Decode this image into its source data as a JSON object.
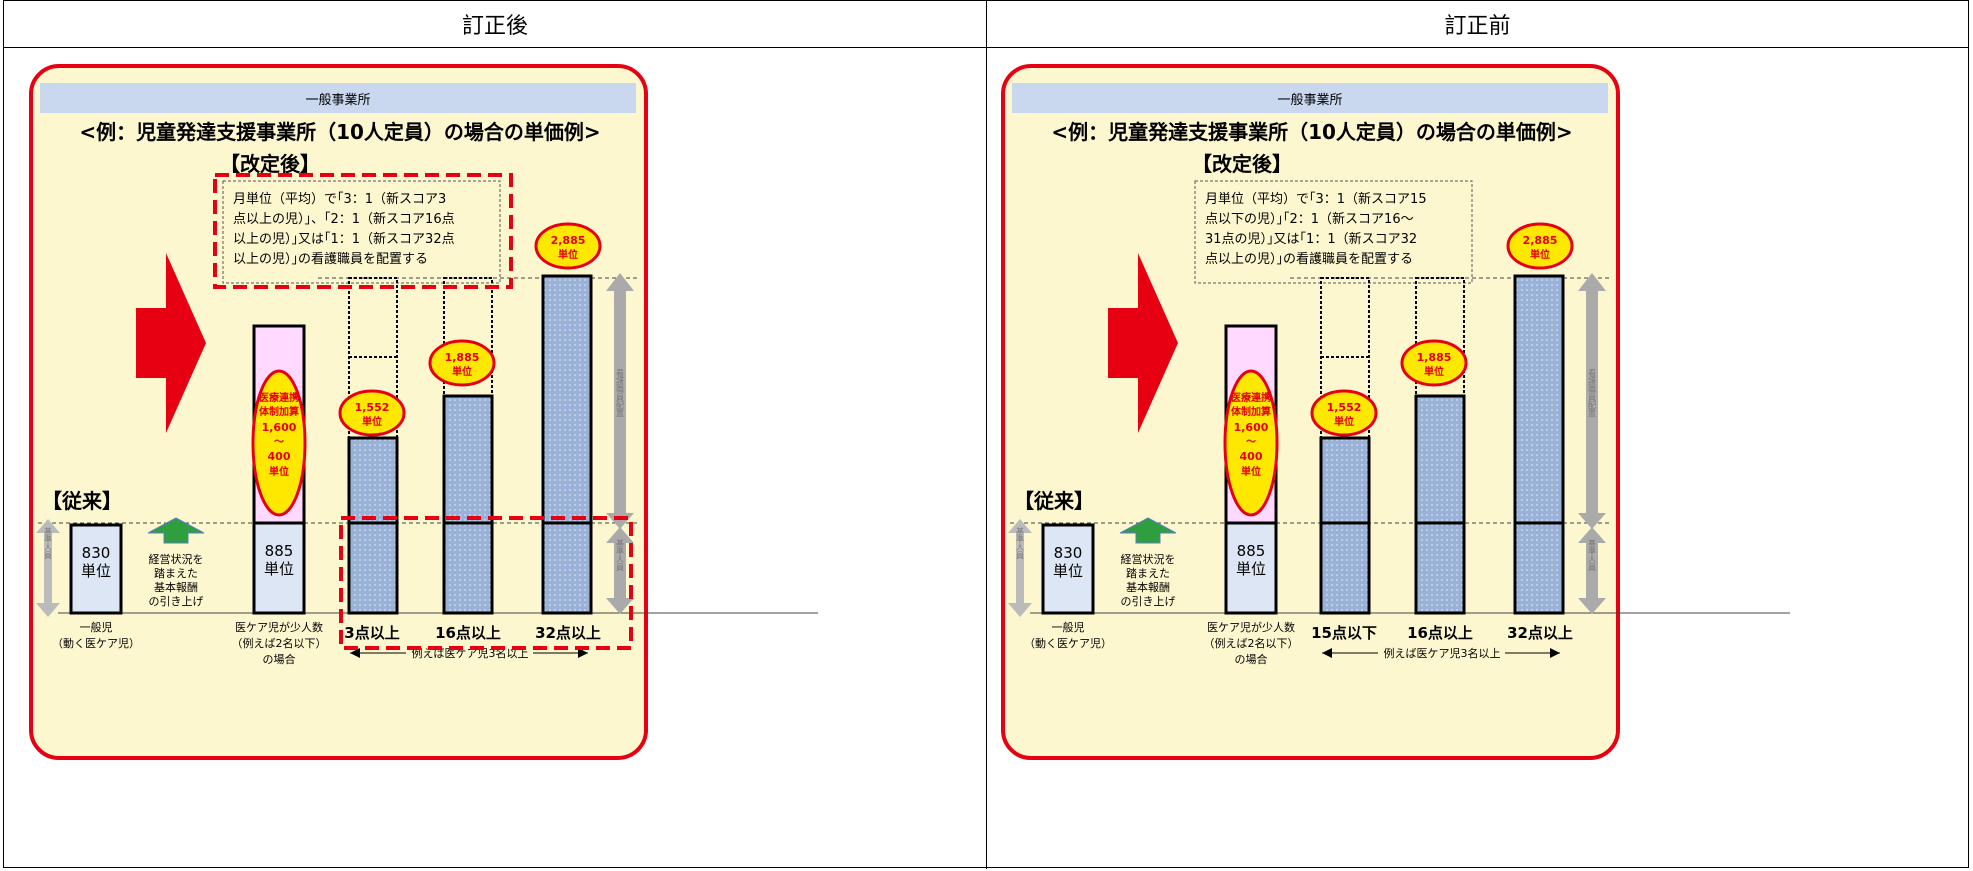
{
  "headers": {
    "left": "訂正後",
    "right": "訂正前"
  },
  "shared": {
    "banner": "一般事業所",
    "title": "<例：児童発達支援事業所（10人定員）の場合の単価例>",
    "after_label": "【改定後】",
    "before_label": "【従来】",
    "base_830": [
      "830",
      "単位"
    ],
    "base_885": [
      "885",
      "単位"
    ],
    "raise_note": [
      "経営状況を",
      "踏まえた",
      "基本報酬",
      "の引き上げ"
    ],
    "iryo_oval": [
      "医療連携",
      "体制加算",
      "1,600",
      "～",
      "400",
      "単位"
    ],
    "oval_1552": [
      "1,552",
      "単位"
    ],
    "oval_1885": [
      "1,885",
      "単位"
    ],
    "oval_2885": [
      "2,885",
      "単位"
    ],
    "cat_general": [
      "一般児",
      "（動く医ケア児）"
    ],
    "cat_few": [
      "医ケア児が少人数",
      "（例えば2名以下）",
      "の場合"
    ],
    "example_note": "例えば医ケア児3名以上",
    "nurse_arrow": "看護職員配置",
    "staff_arrow": "基準人員"
  },
  "left": {
    "note_lines": [
      "月単位（平均）で｢3：1（新スコア3",
      "点以上の児）｣、｢2：1（新スコア16点",
      "以上の児）｣又は｢1：1（新スコア32点",
      "以上の児）｣の看護職員を配置する"
    ],
    "cats": [
      "3点以上",
      "16点以上",
      "32点以上"
    ]
  },
  "right": {
    "note_lines": [
      "月単位（平均）で｢3：1（新スコア15",
      "点以下の児）｣｢2：1（新スコア16～",
      "31点の児）｣又は｢1：1（新スコア32",
      "点以上の児）｣の看護職員を配置する"
    ],
    "cats": [
      "15点以下",
      "16点以上",
      "32点以上"
    ]
  },
  "colors": {
    "accent": "#e60012",
    "panel_bg": "#fdf7d0",
    "oval": "#ffe800",
    "bar_blue": "#9bb2d8",
    "banner": "#c9d8ef",
    "pink": "#ffd9ff",
    "base_bar": "#dde6f5"
  }
}
